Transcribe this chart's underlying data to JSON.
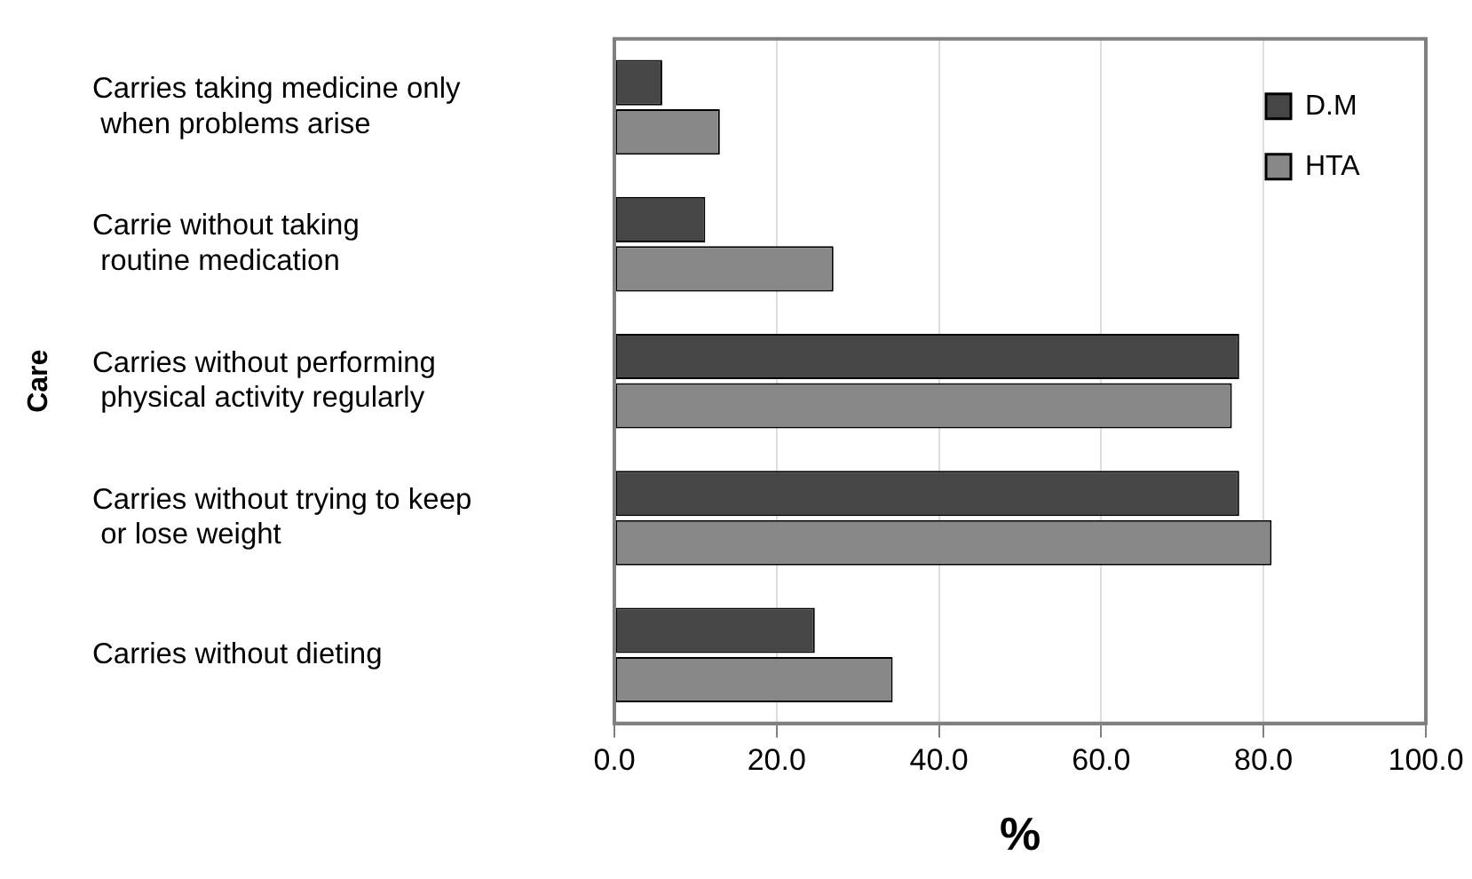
{
  "chart_data": {
    "type": "bar",
    "orientation": "horizontal",
    "xlabel": "%",
    "ylabel": "Care",
    "categories": [
      "Carries taking medicine only\n when problems arise",
      "Carrie without taking\n routine medication",
      "Carries without performing\n physical activity regularly",
      "Carries without trying to keep\n or lose weight",
      "Carries without dieting"
    ],
    "series": [
      {
        "name": "D.M",
        "color": "#464646",
        "values": [
          5.9,
          11.2,
          77.0,
          77.0,
          24.7
        ]
      },
      {
        "name": "HTA",
        "color": "#888888",
        "values": [
          13.0,
          27.0,
          76.1,
          81.0,
          34.3
        ]
      }
    ],
    "xlim": [
      0,
      100
    ],
    "xticks": [
      {
        "value": 0,
        "label": "0.0"
      },
      {
        "value": 20,
        "label": "20.0"
      },
      {
        "value": 40,
        "label": "40.0"
      },
      {
        "value": 60,
        "label": "60.0"
      },
      {
        "value": 80,
        "label": "80.0"
      },
      {
        "value": 100,
        "label": "100.0"
      }
    ],
    "grid": "x",
    "legend": "top right"
  }
}
